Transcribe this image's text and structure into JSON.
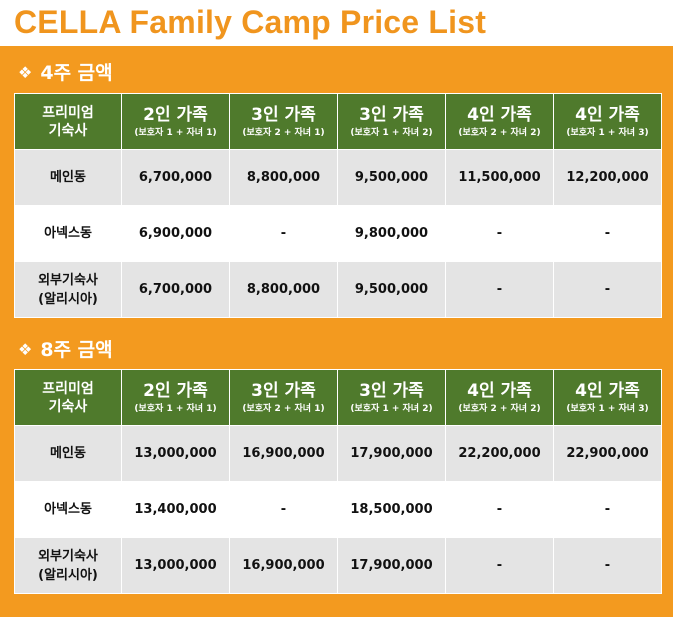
{
  "title": "CELLA Family Camp Price List",
  "colors": {
    "accent": "#f39a1f",
    "header_green": "#4f7a2c",
    "title_orange": "#f0951e",
    "row_gray": "#e4e4e4"
  },
  "sections": [
    {
      "heading": "4주 금액",
      "corner_line1": "프리미엄",
      "corner_line2": "기숙사",
      "columns": [
        {
          "main": "2인 가족",
          "sub": "(보호자 1 + 자녀 1)"
        },
        {
          "main": "3인 가족",
          "sub": "(보호자 2 + 자녀 1)"
        },
        {
          "main": "3인 가족",
          "sub": "(보호자 1 + 자녀 2)"
        },
        {
          "main": "4인 가족",
          "sub": "(보호자 2 + 자녀 2)"
        },
        {
          "main": "4인 가족",
          "sub": "(보호자 1 + 자녀 3)"
        }
      ],
      "rows": [
        {
          "label1": "메인동",
          "label2": "",
          "values": [
            "6,700,000",
            "8,800,000",
            "9,500,000",
            "11,500,000",
            "12,200,000"
          ]
        },
        {
          "label1": "아넥스동",
          "label2": "",
          "values": [
            "6,900,000",
            "-",
            "9,800,000",
            "-",
            "-"
          ]
        },
        {
          "label1": "외부기숙사",
          "label2": "(알리시아)",
          "values": [
            "6,700,000",
            "8,800,000",
            "9,500,000",
            "-",
            "-"
          ]
        }
      ]
    },
    {
      "heading": "8주 금액",
      "corner_line1": "프리미엄",
      "corner_line2": "기숙사",
      "columns": [
        {
          "main": "2인 가족",
          "sub": "(보호자 1 + 자녀 1)"
        },
        {
          "main": "3인 가족",
          "sub": "(보호자 2 + 자녀 1)"
        },
        {
          "main": "3인 가족",
          "sub": "(보호자 1 + 자녀 2)"
        },
        {
          "main": "4인 가족",
          "sub": "(보호자 2 + 자녀 2)"
        },
        {
          "main": "4인 가족",
          "sub": "(보호자 1 + 자녀 3)"
        }
      ],
      "rows": [
        {
          "label1": "메인동",
          "label2": "",
          "values": [
            "13,000,000",
            "16,900,000",
            "17,900,000",
            "22,200,000",
            "22,900,000"
          ]
        },
        {
          "label1": "아넥스동",
          "label2": "",
          "values": [
            "13,400,000",
            "-",
            "18,500,000",
            "-",
            "-"
          ]
        },
        {
          "label1": "외부기숙사",
          "label2": "(알리시아)",
          "values": [
            "13,000,000",
            "16,900,000",
            "17,900,000",
            "-",
            "-"
          ]
        }
      ]
    }
  ]
}
